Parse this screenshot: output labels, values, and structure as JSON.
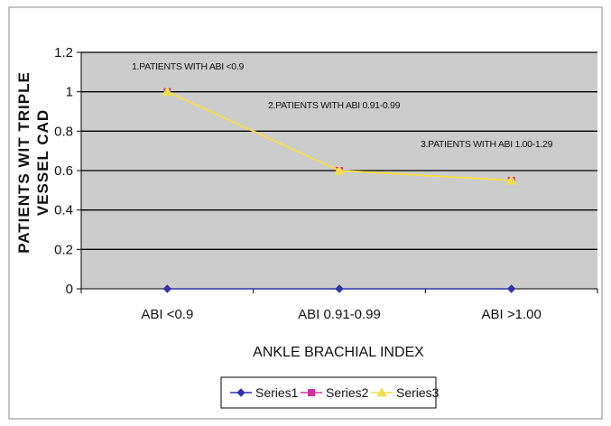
{
  "chart_data": {
    "type": "line",
    "title": "",
    "xlabel": "ANKLE BRACHIAL INDEX",
    "ylabel_lines": [
      "PATIENTS WIT TRIPLE",
      "VESSEL CAD"
    ],
    "categories": [
      "ABI <0.9",
      "ABI 0.91-0.99",
      "ABI >1.00"
    ],
    "ylim": [
      0,
      1.2
    ],
    "yticks": [
      "0",
      "0.2",
      "0.4",
      "0.6",
      "0.8",
      "1",
      "1.2"
    ],
    "grid": true,
    "legend_position": "bottom",
    "series": [
      {
        "name": "Series1",
        "values": [
          0,
          0,
          0
        ],
        "color": "#3333aa",
        "marker": "diamond"
      },
      {
        "name": "Series2",
        "values": [
          1,
          0.6,
          0.55
        ],
        "color": "#cc3399",
        "marker": "square"
      },
      {
        "name": "Series3",
        "values": [
          1,
          0.6,
          0.55
        ],
        "color": "#f0e050",
        "marker": "triangle"
      }
    ],
    "annotations": [
      {
        "text": "1.PATIENTS WITH ABI <0.9"
      },
      {
        "text": "2.PATIENTS WITH ABI 0.91-0.99"
      },
      {
        "text": "3.PATIENTS WITH ABI 1.00-1.29"
      }
    ]
  },
  "colors": {
    "plot_background": "#cccccc",
    "gridline": "#000000",
    "frame": "#888888"
  }
}
